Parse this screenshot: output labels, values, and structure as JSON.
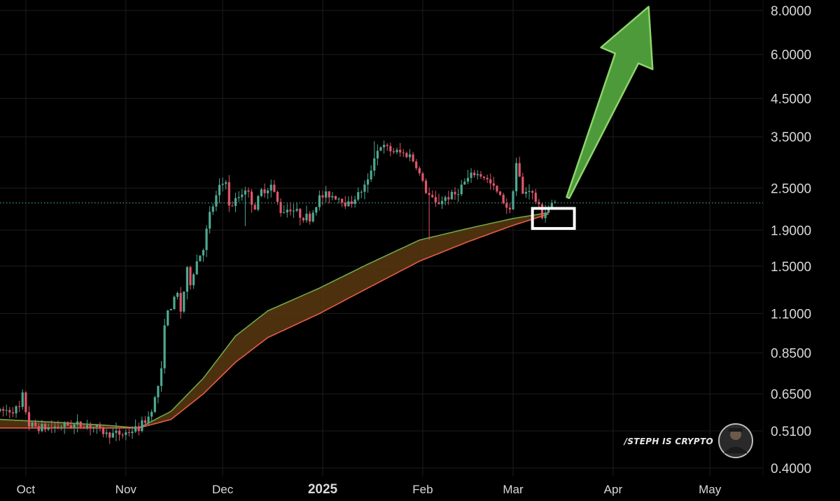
{
  "watermark": {
    "text": "/STEPH IS CRYPTO",
    "avatar_icon": "author-avatar-icon"
  },
  "colors": {
    "background": "#000000",
    "grid": "#1c1c1c",
    "candle_up": "#4fa890",
    "candle_down": "#e0566a",
    "ema_fast": "#6fa84a",
    "ema_slow": "#e85b4a",
    "ribbon_fill": "#5a3a10",
    "arrow_fill": "#4d9a3a",
    "arrow_stroke": "#8fd36c",
    "highlight_box": "#ffffff",
    "last_price_line": "#4fa890"
  },
  "chart_data": {
    "type": "candlestick",
    "y_scale": "log",
    "ylim": [
      0.4,
      8.0
    ],
    "grid": true,
    "x_ticks": [
      {
        "label": "Oct",
        "date": "2024-10-01"
      },
      {
        "label": "Nov",
        "date": "2024-11-01"
      },
      {
        "label": "Dec",
        "date": "2024-12-01"
      },
      {
        "label": "2025",
        "date": "2025-01-01",
        "emphasis": true
      },
      {
        "label": "Feb",
        "date": "2025-02-01"
      },
      {
        "label": "Mar",
        "date": "2025-03-01"
      },
      {
        "label": "Apr",
        "date": "2025-04-01"
      },
      {
        "label": "May",
        "date": "2025-05-01"
      }
    ],
    "y_ticks": [
      "8.0000",
      "6.0000",
      "4.5000",
      "3.5000",
      "2.5000",
      "1.9000",
      "1.5000",
      "1.1000",
      "0.8500",
      "0.6500",
      "0.5100",
      "0.4000"
    ],
    "last_price": 2.27,
    "price_path": [
      [
        "2024-09-23",
        0.58
      ],
      [
        "2024-09-29",
        0.59
      ],
      [
        "2024-09-30",
        0.64
      ],
      [
        "2024-10-02",
        0.53
      ],
      [
        "2024-10-07",
        0.52
      ],
      [
        "2024-10-14",
        0.53
      ],
      [
        "2024-10-21",
        0.53
      ],
      [
        "2024-10-26",
        0.5
      ],
      [
        "2024-10-31",
        0.5
      ],
      [
        "2024-11-05",
        0.52
      ],
      [
        "2024-11-08",
        0.56
      ],
      [
        "2024-11-10",
        0.63
      ],
      [
        "2024-11-12",
        0.75
      ],
      [
        "2024-11-13",
        1.05
      ],
      [
        "2024-11-15",
        1.15
      ],
      [
        "2024-11-17",
        1.25
      ],
      [
        "2024-11-18",
        1.12
      ],
      [
        "2024-11-20",
        1.45
      ],
      [
        "2024-11-21",
        1.35
      ],
      [
        "2024-11-23",
        1.55
      ],
      [
        "2024-11-25",
        1.7
      ],
      [
        "2024-11-27",
        2.1
      ],
      [
        "2024-11-30",
        2.5
      ],
      [
        "2024-12-02",
        2.65
      ],
      [
        "2024-12-03",
        2.2
      ],
      [
        "2024-12-05",
        2.3
      ],
      [
        "2024-12-08",
        2.5
      ],
      [
        "2024-12-11",
        2.2
      ],
      [
        "2024-12-13",
        2.45
      ],
      [
        "2024-12-16",
        2.55
      ],
      [
        "2024-12-19",
        2.15
      ],
      [
        "2024-12-22",
        2.2
      ],
      [
        "2024-12-25",
        2.1
      ],
      [
        "2024-12-28",
        2.05
      ],
      [
        "2024-12-31",
        2.35
      ],
      [
        "2025-01-03",
        2.4
      ],
      [
        "2025-01-06",
        2.35
      ],
      [
        "2025-01-09",
        2.25
      ],
      [
        "2025-01-12",
        2.4
      ],
      [
        "2025-01-15",
        2.6
      ],
      [
        "2025-01-17",
        3.1
      ],
      [
        "2025-01-19",
        3.3
      ],
      [
        "2025-01-22",
        3.2
      ],
      [
        "2025-01-25",
        3.15
      ],
      [
        "2025-01-28",
        3.1
      ],
      [
        "2025-01-30",
        2.9
      ],
      [
        "2025-02-02",
        2.45
      ],
      [
        "2025-02-05",
        2.25
      ],
      [
        "2025-02-08",
        2.35
      ],
      [
        "2025-02-11",
        2.4
      ],
      [
        "2025-02-14",
        2.6
      ],
      [
        "2025-02-17",
        2.75
      ],
      [
        "2025-02-20",
        2.7
      ],
      [
        "2025-02-23",
        2.5
      ],
      [
        "2025-02-26",
        2.3
      ],
      [
        "2025-02-28",
        2.15
      ],
      [
        "2025-03-02",
        2.95
      ],
      [
        "2025-03-04",
        2.4
      ],
      [
        "2025-03-06",
        2.5
      ],
      [
        "2025-03-08",
        2.3
      ],
      [
        "2025-03-10",
        2.1
      ],
      [
        "2025-03-12",
        2.2
      ],
      [
        "2025-03-14",
        2.27
      ]
    ],
    "wick_spikes": [
      {
        "date": "2025-02-03",
        "low": 1.78
      },
      {
        "date": "2025-01-17",
        "high": 3.4
      },
      {
        "date": "2025-03-02",
        "high": 3.05
      },
      {
        "date": "2024-12-08",
        "low": 1.95
      }
    ],
    "ema_fast": [
      [
        "2024-09-23",
        0.55
      ],
      [
        "2024-10-10",
        0.54
      ],
      [
        "2024-10-25",
        0.53
      ],
      [
        "2024-11-05",
        0.52
      ],
      [
        "2024-11-15",
        0.58
      ],
      [
        "2024-11-25",
        0.72
      ],
      [
        "2024-12-05",
        0.95
      ],
      [
        "2024-12-15",
        1.12
      ],
      [
        "2024-12-31",
        1.3
      ],
      [
        "2025-01-15",
        1.52
      ],
      [
        "2025-01-31",
        1.78
      ],
      [
        "2025-02-15",
        1.92
      ],
      [
        "2025-03-01",
        2.05
      ],
      [
        "2025-03-12",
        2.13
      ]
    ],
    "ema_slow": [
      [
        "2024-09-23",
        0.52
      ],
      [
        "2024-10-10",
        0.52
      ],
      [
        "2024-10-25",
        0.52
      ],
      [
        "2024-11-05",
        0.52
      ],
      [
        "2024-11-15",
        0.55
      ],
      [
        "2024-11-25",
        0.65
      ],
      [
        "2024-12-05",
        0.8
      ],
      [
        "2024-12-15",
        0.94
      ],
      [
        "2024-12-31",
        1.1
      ],
      [
        "2025-01-15",
        1.3
      ],
      [
        "2025-01-31",
        1.55
      ],
      [
        "2025-02-15",
        1.76
      ],
      [
        "2025-03-01",
        1.96
      ],
      [
        "2025-03-12",
        2.11
      ]
    ],
    "highlight_box": {
      "x0": "2025-03-07",
      "x1": "2025-03-20",
      "y_top": 2.19,
      "y_bottom": 1.92
    },
    "projection_arrow": {
      "from": {
        "date": "2025-03-18",
        "value": 2.35
      },
      "to": {
        "date": "2025-04-12",
        "value": 8.2
      }
    }
  }
}
